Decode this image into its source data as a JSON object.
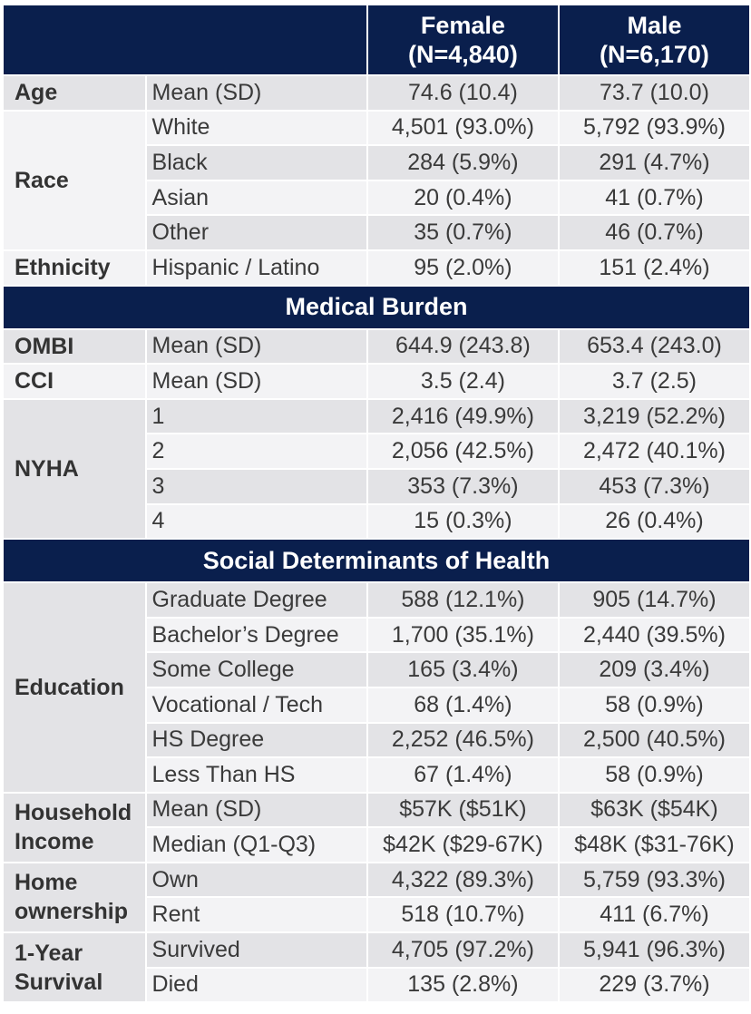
{
  "header": {
    "female_label": "Female",
    "female_n": "(N=4,840)",
    "male_label": "Male",
    "male_n": "(N=6,170)"
  },
  "sections": {
    "medical_burden": "Medical Burden",
    "sdoh": "Social Determinants of Health"
  },
  "groups": [
    {
      "label": "Age",
      "rows": [
        [
          "Mean (SD)",
          "74.6 (10.4)",
          "73.7 (10.0)"
        ]
      ]
    },
    {
      "label": "Race",
      "rows": [
        [
          "White",
          "4,501 (93.0%)",
          "5,792 (93.9%)"
        ],
        [
          "Black",
          "284 (5.9%)",
          "291 (4.7%)"
        ],
        [
          "Asian",
          "20 (0.4%)",
          "41 (0.7%)"
        ],
        [
          "Other",
          "35 (0.7%)",
          "46 (0.7%)"
        ]
      ]
    },
    {
      "label": "Ethnicity",
      "rows": [
        [
          "Hispanic / Latino",
          "95 (2.0%)",
          "151 (2.4%)"
        ]
      ]
    },
    {
      "label": "OMBI",
      "rows": [
        [
          "Mean (SD)",
          "644.9 (243.8)",
          "653.4 (243.0)"
        ]
      ]
    },
    {
      "label": "CCI",
      "rows": [
        [
          "Mean (SD)",
          "3.5 (2.4)",
          "3.7 (2.5)"
        ]
      ]
    },
    {
      "label": "NYHA",
      "rows": [
        [
          "1",
          "2,416 (49.9%)",
          "3,219 (52.2%)"
        ],
        [
          "2",
          "2,056 (42.5%)",
          "2,472 (40.1%)"
        ],
        [
          "3",
          "353 (7.3%)",
          "453 (7.3%)"
        ],
        [
          "4",
          "15 (0.3%)",
          "26 (0.4%)"
        ]
      ]
    },
    {
      "label": "Education",
      "rows": [
        [
          "Graduate Degree",
          "588 (12.1%)",
          "905 (14.7%)"
        ],
        [
          "Bachelor’s Degree",
          "1,700 (35.1%)",
          "2,440 (39.5%)"
        ],
        [
          "Some College",
          "165 (3.4%)",
          "209 (3.4%)"
        ],
        [
          "Vocational / Tech",
          "68 (1.4%)",
          "58 (0.9%)"
        ],
        [
          "HS Degree",
          "2,252 (46.5%)",
          "2,500 (40.5%)"
        ],
        [
          "Less Than HS",
          "67 (1.4%)",
          "58 (0.9%)"
        ]
      ]
    },
    {
      "label": "Household Income",
      "rows": [
        [
          "Mean (SD)",
          "$57K ($51K)",
          "$63K ($54K)"
        ],
        [
          "Median (Q1-Q3)",
          "$42K ($29-67K)",
          "$48K ($31-76K)"
        ]
      ]
    },
    {
      "label": "Home ownership",
      "rows": [
        [
          "Own",
          "4,322 (89.3%)",
          "5,759 (93.3%)"
        ],
        [
          "Rent",
          "518 (10.7%)",
          "411 (6.7%)"
        ]
      ]
    },
    {
      "label": "1-Year Survival",
      "rows": [
        [
          "Survived",
          "4,705 (97.2%)",
          "5,941 (96.3%)"
        ],
        [
          "Died",
          "135 (2.8%)",
          "229 (3.7%)"
        ]
      ]
    }
  ]
}
